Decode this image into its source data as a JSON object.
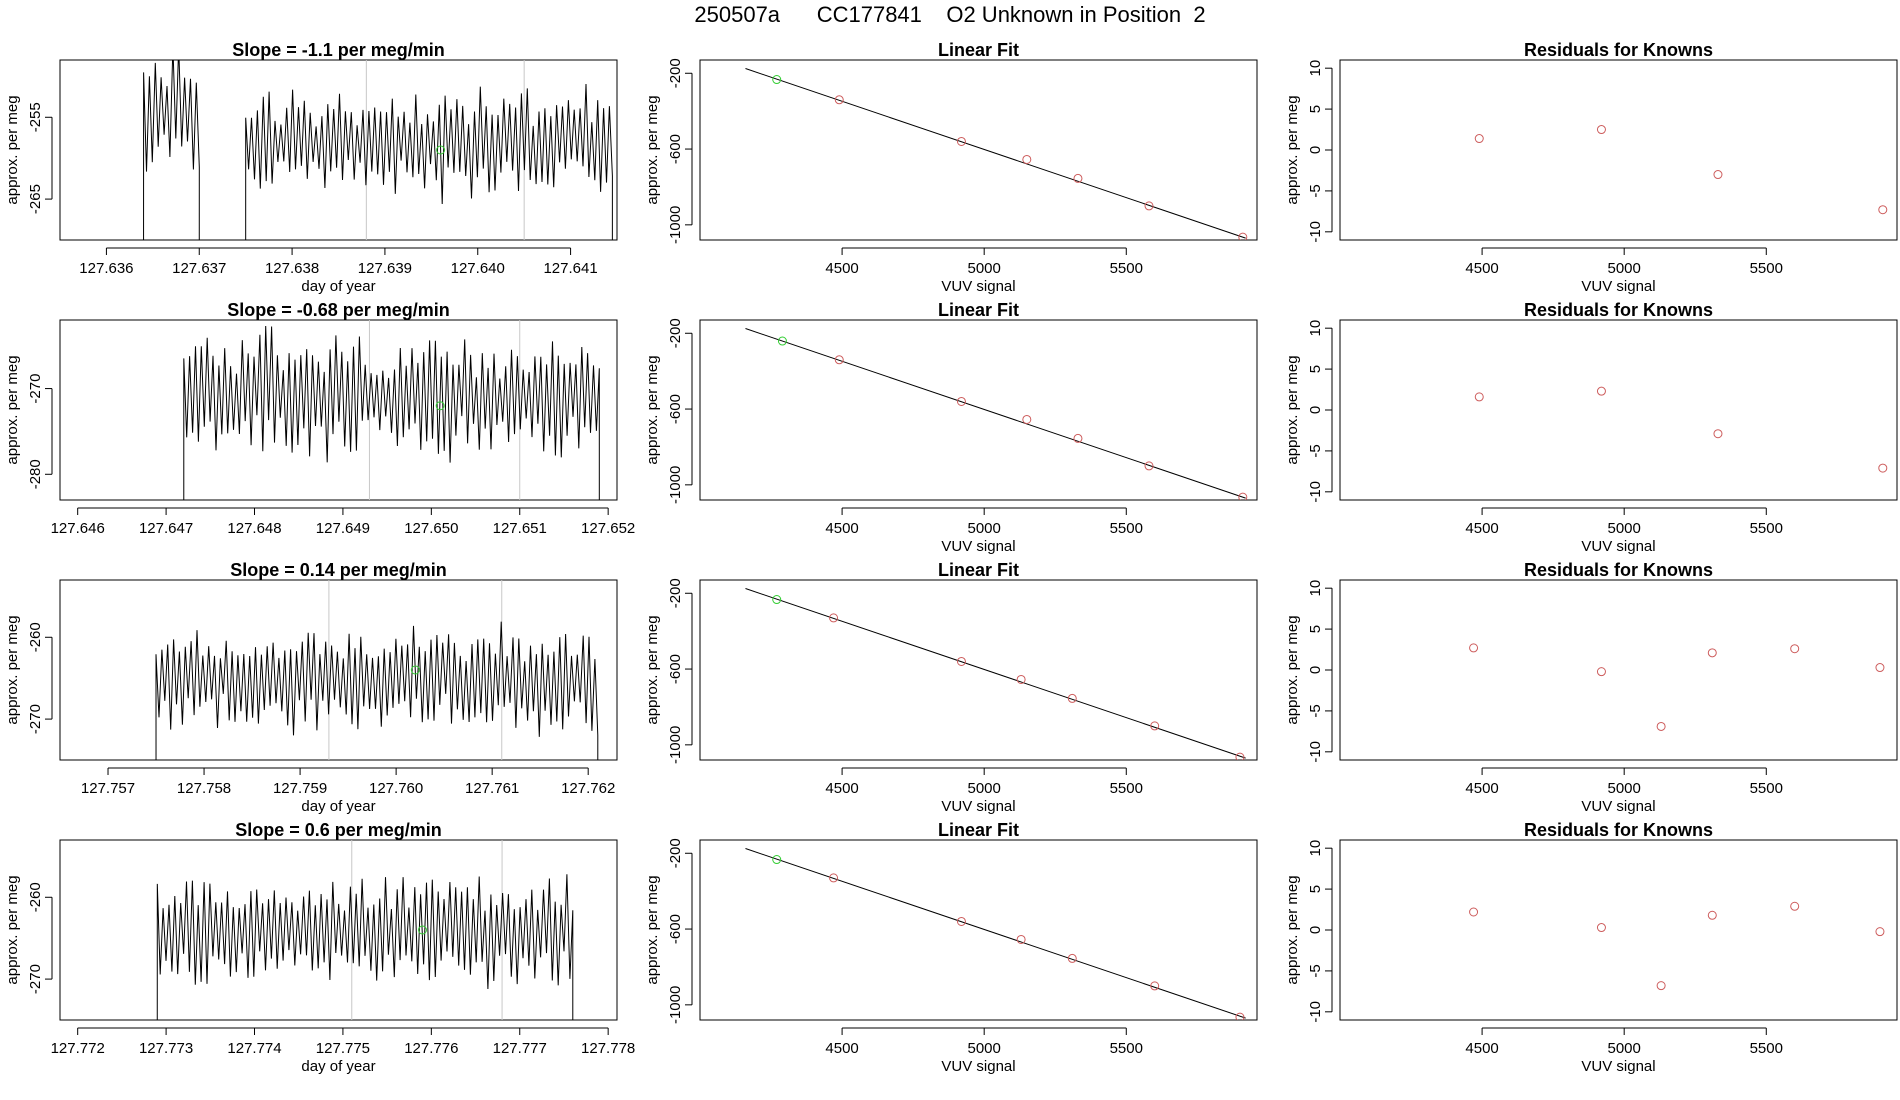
{
  "figure_title": "250507a      CC177841    O2 Unknown in Position  2",
  "colors": {
    "series": "#000000",
    "known_point": "#cd5c5c",
    "unknown_point": "#32cd32",
    "marker_line": "#c8c8c8",
    "axis": "#000000"
  },
  "chart_data": [
    {
      "type": "line",
      "panel": "row1-timeseries",
      "title": "Slope =  -1.1  per meg/min",
      "xlabel": "day of year",
      "ylabel": "approx. per meg",
      "xlim": [
        127.6355,
        127.6415
      ],
      "ylim": [
        -270,
        -248
      ],
      "xticks": [
        127.636,
        127.637,
        127.638,
        127.639,
        127.64,
        127.641
      ],
      "yticks": [
        -255,
        -265
      ],
      "tick_decimals": 3,
      "vlines": [
        127.6388,
        127.6405
      ],
      "unknown_mean": {
        "x": 127.6396,
        "y": -259
      },
      "segments": [
        {
          "x_start": 127.6364,
          "x_end": 127.637,
          "base": -254,
          "amp": 8,
          "seed": 1
        },
        {
          "x_start": 127.6375,
          "x_end": 127.64145,
          "base": -258,
          "amp": 7,
          "seed": 2
        }
      ]
    },
    {
      "type": "scatter",
      "panel": "row1-linearfit",
      "title": "Linear Fit",
      "xlabel": "VUV signal",
      "ylabel": "approx. per meg",
      "xlim": [
        4000,
        5960
      ],
      "ylim": [
        -1080,
        -130
      ],
      "xticks": [
        4500,
        5000,
        5500
      ],
      "yticks": [
        -200,
        -600,
        -1000
      ],
      "fit_line": {
        "x": [
          4160,
          5920
        ],
        "y": [
          -175,
          -1070
        ]
      },
      "points": [
        {
          "x": 4270,
          "y": -233,
          "kind": "unknown"
        },
        {
          "x": 4490,
          "y": -340
        },
        {
          "x": 4920,
          "y": -560
        },
        {
          "x": 5150,
          "y": -655
        },
        {
          "x": 5330,
          "y": -755
        },
        {
          "x": 5580,
          "y": -900
        },
        {
          "x": 5910,
          "y": -1065
        }
      ]
    },
    {
      "type": "scatter",
      "panel": "row1-residuals",
      "title": "Residuals for Knowns",
      "xlabel": "VUV signal",
      "ylabel": "approx. per meg",
      "xlim": [
        4000,
        5960
      ],
      "ylim": [
        -11,
        11
      ],
      "xticks": [
        4500,
        5000,
        5500
      ],
      "yticks": [
        10,
        5,
        0,
        -5,
        -10
      ],
      "points": [
        {
          "x": 4490,
          "y": 1.4
        },
        {
          "x": 4920,
          "y": 2.5
        },
        {
          "x": 5330,
          "y": -3
        },
        {
          "x": 5910,
          "y": -7.3
        }
      ]
    },
    {
      "type": "line",
      "panel": "row2-timeseries",
      "title": "Slope =  -0.68  per meg/min",
      "xlabel": "",
      "ylabel": "approx. per meg",
      "xlim": [
        127.6458,
        127.6521
      ],
      "ylim": [
        -283,
        -262
      ],
      "xticks": [
        127.646,
        127.647,
        127.648,
        127.649,
        127.65,
        127.651,
        127.652
      ],
      "yticks": [
        -270,
        -280
      ],
      "tick_decimals": 3,
      "vlines": [
        127.6493,
        127.651
      ],
      "unknown_mean": {
        "x": 127.6501,
        "y": -272
      },
      "segments": [
        {
          "x_start": 127.6472,
          "x_end": 127.6519,
          "base": -271,
          "amp": 8,
          "seed": 3
        }
      ]
    },
    {
      "type": "scatter",
      "panel": "row2-linearfit",
      "title": "Linear Fit",
      "xlabel": "VUV signal",
      "ylabel": "approx. per meg",
      "xlim": [
        4000,
        5960
      ],
      "ylim": [
        -1080,
        -130
      ],
      "xticks": [
        4500,
        5000,
        5500
      ],
      "yticks": [
        -200,
        -600,
        -1000
      ],
      "fit_line": {
        "x": [
          4160,
          5920
        ],
        "y": [
          -175,
          -1070
        ]
      },
      "points": [
        {
          "x": 4290,
          "y": -241,
          "kind": "unknown"
        },
        {
          "x": 4490,
          "y": -340
        },
        {
          "x": 4920,
          "y": -560
        },
        {
          "x": 5150,
          "y": -655
        },
        {
          "x": 5330,
          "y": -755
        },
        {
          "x": 5580,
          "y": -900
        },
        {
          "x": 5910,
          "y": -1065
        }
      ]
    },
    {
      "type": "scatter",
      "panel": "row2-residuals",
      "title": "Residuals for Knowns",
      "xlabel": "VUV signal",
      "ylabel": "approx. per meg",
      "xlim": [
        4000,
        5960
      ],
      "ylim": [
        -11,
        11
      ],
      "xticks": [
        4500,
        5000,
        5500
      ],
      "yticks": [
        10,
        5,
        0,
        -5,
        -10
      ],
      "points": [
        {
          "x": 4490,
          "y": 1.6
        },
        {
          "x": 4920,
          "y": 2.3
        },
        {
          "x": 5330,
          "y": -2.9
        },
        {
          "x": 5910,
          "y": -7.1
        }
      ]
    },
    {
      "type": "line",
      "panel": "row3-timeseries",
      "title": "Slope =  0.14  per meg/min",
      "xlabel": "day of year",
      "ylabel": "approx. per meg",
      "xlim": [
        127.7565,
        127.7623
      ],
      "ylim": [
        -275,
        -253
      ],
      "xticks": [
        127.757,
        127.758,
        127.759,
        127.76,
        127.761,
        127.762
      ],
      "yticks": [
        -260,
        -270
      ],
      "tick_decimals": 3,
      "vlines": [
        127.7593,
        127.7611
      ],
      "unknown_mean": {
        "x": 127.7602,
        "y": -264
      },
      "segments": [
        {
          "x_start": 127.7575,
          "x_end": 127.7621,
          "base": -265,
          "amp": 7,
          "seed": 4
        }
      ]
    },
    {
      "type": "scatter",
      "panel": "row3-linearfit",
      "title": "Linear Fit",
      "xlabel": "VUV signal",
      "ylabel": "approx. per meg",
      "xlim": [
        4000,
        5960
      ],
      "ylim": [
        -1080,
        -130
      ],
      "xticks": [
        4500,
        5000,
        5500
      ],
      "yticks": [
        -200,
        -600,
        -1000
      ],
      "fit_line": {
        "x": [
          4160,
          5920
        ],
        "y": [
          -175,
          -1070
        ]
      },
      "points": [
        {
          "x": 4270,
          "y": -233,
          "kind": "unknown"
        },
        {
          "x": 4470,
          "y": -330
        },
        {
          "x": 4920,
          "y": -560
        },
        {
          "x": 5130,
          "y": -655
        },
        {
          "x": 5310,
          "y": -755
        },
        {
          "x": 5600,
          "y": -900
        },
        {
          "x": 5900,
          "y": -1065
        }
      ]
    },
    {
      "type": "scatter",
      "panel": "row3-residuals",
      "title": "Residuals for Knowns",
      "xlabel": "VUV signal",
      "ylabel": "approx. per meg",
      "xlim": [
        4000,
        5960
      ],
      "ylim": [
        -11,
        11
      ],
      "xticks": [
        4500,
        5000,
        5500
      ],
      "yticks": [
        10,
        5,
        0,
        -5,
        -10
      ],
      "points": [
        {
          "x": 4470,
          "y": 2.7
        },
        {
          "x": 4920,
          "y": -0.2
        },
        {
          "x": 5130,
          "y": -6.9
        },
        {
          "x": 5310,
          "y": 2.1
        },
        {
          "x": 5600,
          "y": 2.6
        },
        {
          "x": 5900,
          "y": 0.3
        }
      ]
    },
    {
      "type": "line",
      "panel": "row4-timeseries",
      "title": "Slope =  0.6  per meg/min",
      "xlabel": "day of year",
      "ylabel": "approx. per meg",
      "xlim": [
        127.7718,
        127.7781
      ],
      "ylim": [
        -275,
        -253
      ],
      "xticks": [
        127.772,
        127.773,
        127.774,
        127.775,
        127.776,
        127.777,
        127.778
      ],
      "yticks": [
        -260,
        -270
      ],
      "tick_decimals": 3,
      "vlines": [
        127.7751,
        127.7768
      ],
      "unknown_mean": {
        "x": 127.7759,
        "y": -264
      },
      "segments": [
        {
          "x_start": 127.7729,
          "x_end": 127.7776,
          "base": -264,
          "amp": 7,
          "seed": 5
        }
      ]
    },
    {
      "type": "scatter",
      "panel": "row4-linearfit",
      "title": "Linear Fit",
      "xlabel": "VUV signal",
      "ylabel": "approx. per meg",
      "xlim": [
        4000,
        5960
      ],
      "ylim": [
        -1080,
        -130
      ],
      "xticks": [
        4500,
        5000,
        5500
      ],
      "yticks": [
        -200,
        -600,
        -1000
      ],
      "fit_line": {
        "x": [
          4160,
          5920
        ],
        "y": [
          -175,
          -1070
        ]
      },
      "points": [
        {
          "x": 4270,
          "y": -233,
          "kind": "unknown"
        },
        {
          "x": 4470,
          "y": -330
        },
        {
          "x": 4920,
          "y": -560
        },
        {
          "x": 5130,
          "y": -655
        },
        {
          "x": 5310,
          "y": -755
        },
        {
          "x": 5600,
          "y": -900
        },
        {
          "x": 5900,
          "y": -1065
        }
      ]
    },
    {
      "type": "scatter",
      "panel": "row4-residuals",
      "title": "Residuals for Knowns",
      "xlabel": "VUV signal",
      "ylabel": "approx. per meg",
      "xlim": [
        4000,
        5960
      ],
      "ylim": [
        -11,
        11
      ],
      "xticks": [
        4500,
        5000,
        5500
      ],
      "yticks": [
        10,
        5,
        0,
        -5,
        -10
      ],
      "points": [
        {
          "x": 4470,
          "y": 2.2
        },
        {
          "x": 4920,
          "y": 0.3
        },
        {
          "x": 5130,
          "y": -6.8
        },
        {
          "x": 5310,
          "y": 1.8
        },
        {
          "x": 5600,
          "y": 2.9
        },
        {
          "x": 5900,
          "y": -0.2
        }
      ]
    }
  ]
}
